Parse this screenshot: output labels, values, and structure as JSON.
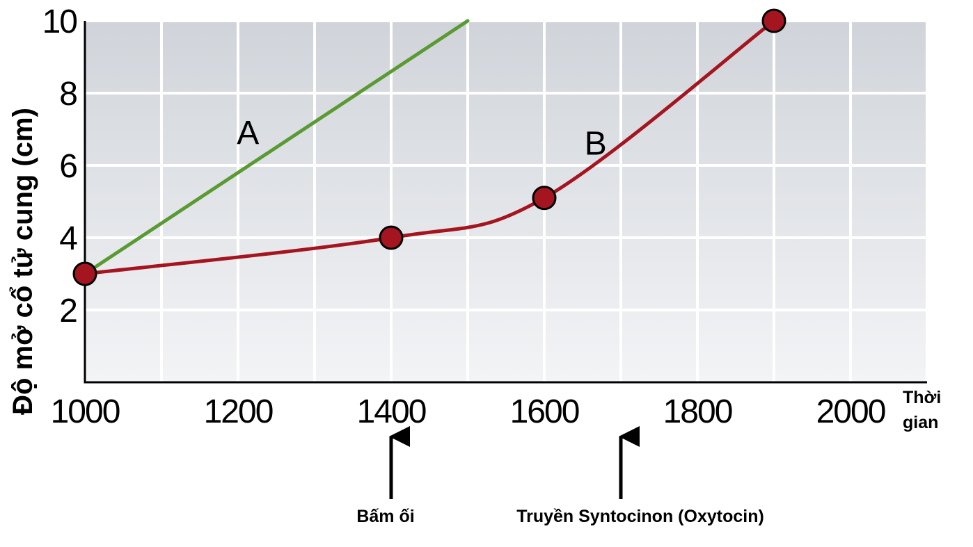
{
  "chart_data": {
    "type": "line",
    "xlabel": [
      "Thời",
      "gian"
    ],
    "ylabel": "Độ mở cổ tử cung (cm)",
    "xlim": [
      1000,
      2100
    ],
    "ylim": [
      0,
      10
    ],
    "x_ticks": [
      1000,
      1200,
      1400,
      1600,
      1800,
      2000
    ],
    "x_tick_labels": [
      "1000",
      "1200",
      "1400",
      "1600",
      "1800",
      "2000"
    ],
    "x_grid_step": 100,
    "y_ticks": [
      2,
      4,
      6,
      8,
      10
    ],
    "y_tick_labels": [
      "2",
      "4",
      "6",
      "8",
      "10"
    ],
    "grid": true,
    "background_gradient": [
      "#d0d4da",
      "#f3f4f6"
    ],
    "series": [
      {
        "name": "A",
        "color": "#5a9a32",
        "markers": false,
        "points": [
          {
            "x": 1000,
            "y": 3.0
          },
          {
            "x": 1500,
            "y": 10.0
          }
        ]
      },
      {
        "name": "B",
        "color": "#a51520",
        "markers": true,
        "points": [
          {
            "x": 1000,
            "y": 3.0
          },
          {
            "x": 1400,
            "y": 4.0
          },
          {
            "x": 1600,
            "y": 5.1
          },
          {
            "x": 1900,
            "y": 10.0
          }
        ]
      }
    ],
    "annotations": [
      {
        "label": "Bấm ối",
        "x": 1400
      },
      {
        "label": "Truyền Syntocinon (Oxytocin)",
        "x": 1700
      }
    ]
  }
}
